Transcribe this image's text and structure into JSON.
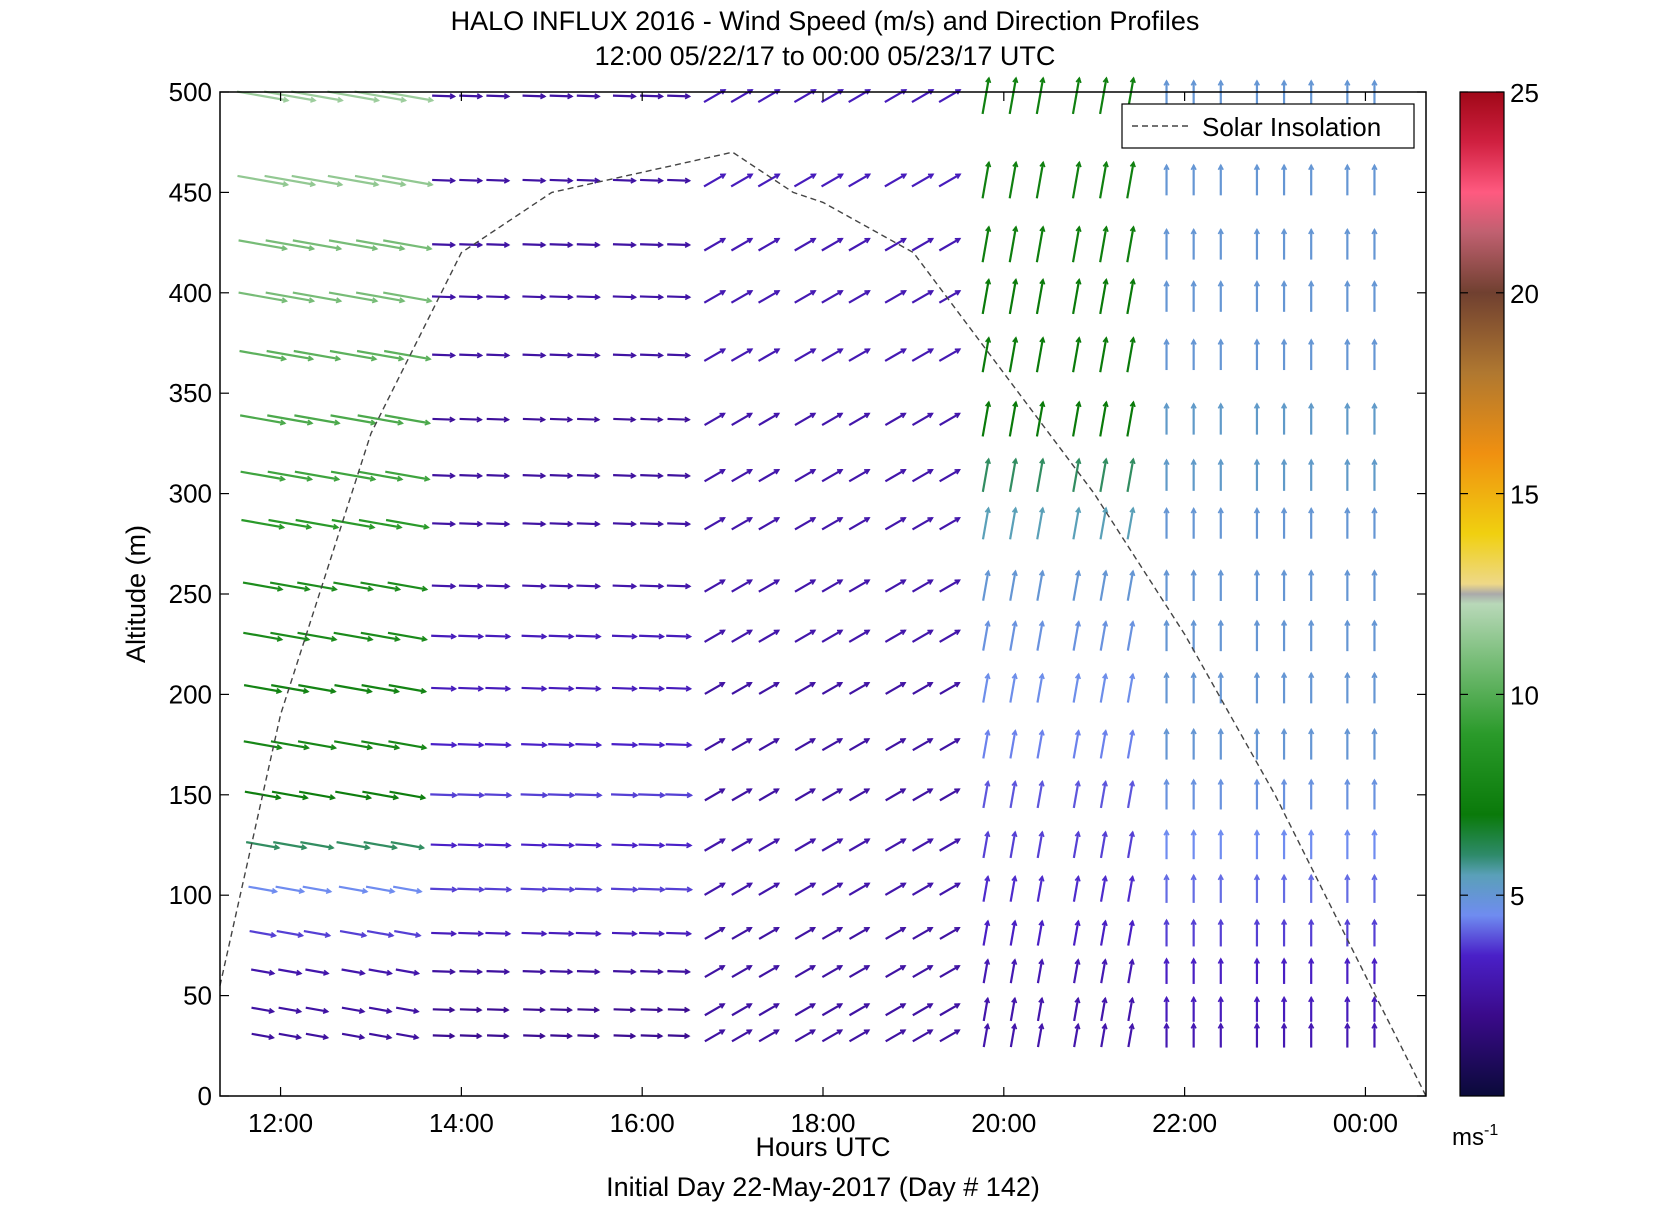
{
  "chart_data": {
    "type": "wind-barb-profile",
    "title": "HALO INFLUX 2016 - Wind Speed (m/s) and Direction Profiles",
    "subtitle": "12:00 05/22/17 to 00:00 05/23/17  UTC",
    "xlabel": "Hours UTC",
    "xlabel2": "Initial Day 22-May-2017 (Day # 142)",
    "ylabel": "Altitude (m)",
    "x_ticks": [
      "12:00",
      "14:00",
      "16:00",
      "18:00",
      "20:00",
      "22:00",
      "00:00"
    ],
    "x_tick_hours": [
      12,
      14,
      16,
      18,
      20,
      22,
      24
    ],
    "xlim_hours": [
      11.33,
      24.67
    ],
    "y_ticks": [
      "0",
      "50",
      "100",
      "150",
      "200",
      "250",
      "300",
      "350",
      "400",
      "450",
      "500"
    ],
    "ylim": [
      0,
      500
    ],
    "grid": false,
    "legend": {
      "label": "Solar Insolation",
      "position": "top-right"
    },
    "colorbar": {
      "label": "ms-1",
      "label_base": "ms",
      "label_exp": "-1",
      "ticks": [
        "5",
        "10",
        "15",
        "20",
        "25"
      ],
      "range": [
        0,
        25
      ]
    },
    "solar_insolation": {
      "x_hours": [
        11.33,
        12,
        13,
        14,
        15,
        16,
        17,
        17.67,
        18,
        19,
        20,
        21,
        22,
        23,
        24,
        24.67
      ],
      "y_altitude": [
        55,
        190,
        330,
        420,
        450,
        460,
        470,
        450,
        445,
        420,
        360,
        300,
        230,
        150,
        60,
        0
      ]
    },
    "x_columns_hours": [
      11.8,
      12.1,
      12.4,
      12.8,
      13.1,
      13.4,
      13.8,
      14.1,
      14.4,
      14.8,
      15.1,
      15.4,
      15.8,
      16.1,
      16.4,
      16.8,
      17.1,
      17.4,
      17.8,
      18.1,
      18.4,
      18.8,
      19.1,
      19.4,
      19.8,
      20.1,
      20.4,
      20.8,
      21.1,
      21.4,
      21.8,
      22.1,
      22.4,
      22.8,
      23.1,
      23.4,
      23.8,
      24.1
    ],
    "altitudes_m": [
      30,
      43,
      62,
      81,
      103,
      125,
      150,
      175,
      203,
      229,
      254,
      285,
      309,
      337,
      369,
      398,
      424,
      456,
      498
    ],
    "wind_profiles": [
      {
        "hour_from": 11.8,
        "hour_to": 13.4,
        "dir_deg": 280,
        "speed": [
          2.5,
          2.6,
          2.8,
          3.8,
          4.5,
          6.0,
          6.8,
          7.5,
          7.3,
          7.8,
          8.0,
          9.0,
          9.5,
          9.8,
          10.2,
          10.8,
          10.8,
          11.5,
          11.8
        ]
      },
      {
        "hour_from": 13.4,
        "hour_to": 16.4,
        "dir_deg": 272,
        "speed": [
          2.2,
          2.2,
          2.5,
          3.2,
          3.8,
          3.5,
          3.8,
          3.5,
          3.2,
          3.2,
          2.8,
          2.6,
          2.5,
          2.4,
          2.6,
          2.7,
          2.6,
          2.6,
          2.6
        ]
      },
      {
        "hour_from": 16.8,
        "hour_to": 19.4,
        "dir_deg": 240,
        "speed": [
          2.6,
          2.6,
          2.6,
          2.6,
          2.8,
          2.8,
          2.6,
          2.6,
          2.6,
          2.8,
          2.8,
          2.8,
          2.8,
          2.8,
          3.0,
          3.0,
          3.0,
          3.2,
          3.2
        ]
      },
      {
        "hour_from": 19.8,
        "hour_to": 21.4,
        "dir_deg": 190,
        "speed": [
          2.8,
          2.8,
          3.0,
          3.4,
          3.6,
          3.8,
          4.0,
          4.4,
          4.6,
          4.8,
          5.0,
          5.5,
          6.0,
          6.5,
          6.5,
          6.5,
          6.8,
          7.0,
          7.0
        ]
      },
      {
        "hour_from": 21.8,
        "hour_to": 24.1,
        "dir_deg": 180,
        "speed": [
          3.0,
          3.2,
          3.4,
          3.8,
          4.2,
          4.5,
          4.8,
          5.0,
          5.0,
          5.0,
          5.0,
          5.0,
          5.2,
          5.2,
          5.0,
          5.0,
          5.0,
          5.0,
          5.0
        ]
      }
    ]
  }
}
